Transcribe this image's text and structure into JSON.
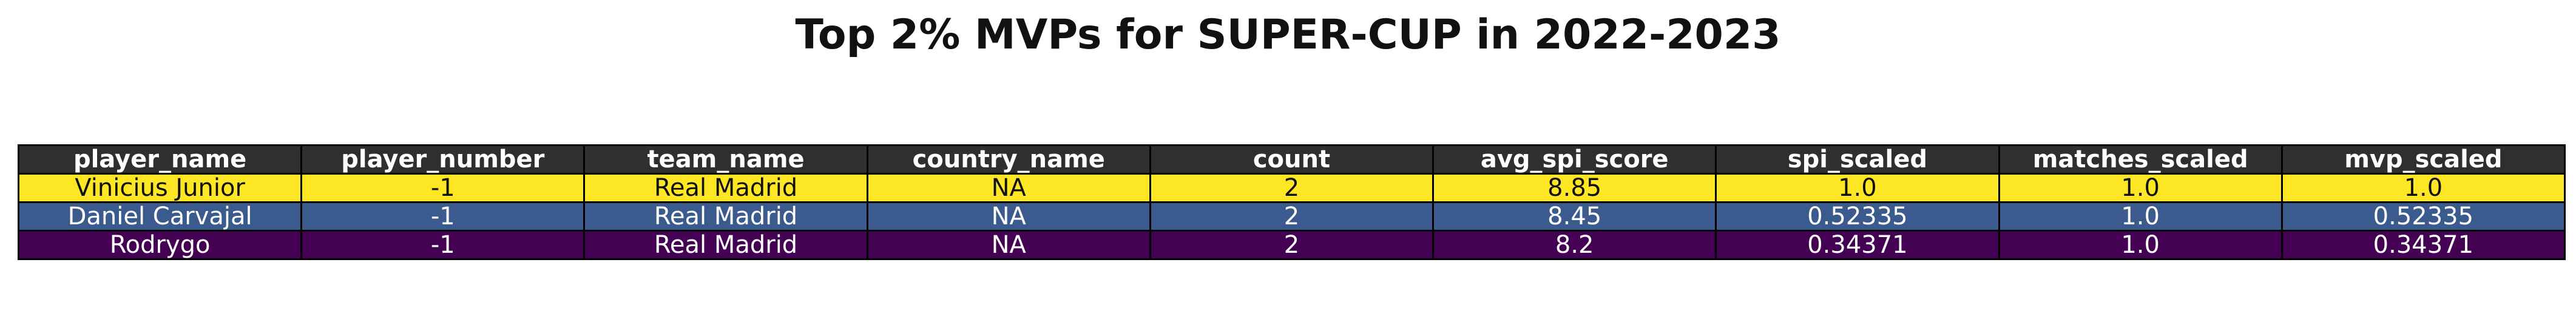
{
  "chart_data": {
    "type": "table",
    "title": "Top 2% MVPs for SUPER-CUP in 2022-2023",
    "columns": [
      "player_name",
      "player_number",
      "team_name",
      "country_name",
      "count",
      "avg_spi_score",
      "spi_scaled",
      "matches_scaled",
      "mvp_scaled"
    ],
    "rows": [
      [
        "Vinicius Junior",
        "-1",
        "Real Madrid",
        "NA",
        "2",
        "8.85",
        "1.0",
        "1.0",
        "1.0"
      ],
      [
        "Daniel Carvajal",
        "-1",
        "Real Madrid",
        "NA",
        "2",
        "8.45",
        "0.52335",
        "1.0",
        "0.52335"
      ],
      [
        "Rodrygo",
        "-1",
        "Real Madrid",
        "NA",
        "2",
        "8.2",
        "0.34371",
        "1.0",
        "0.34371"
      ]
    ],
    "row_colors": [
      "#fde725",
      "#3b5a8e",
      "#440154"
    ],
    "row_text_colors": [
      "#111111",
      "#ffffff",
      "#ffffff"
    ],
    "header_color": "#2f2f2f",
    "header_text_color": "#ffffff"
  }
}
